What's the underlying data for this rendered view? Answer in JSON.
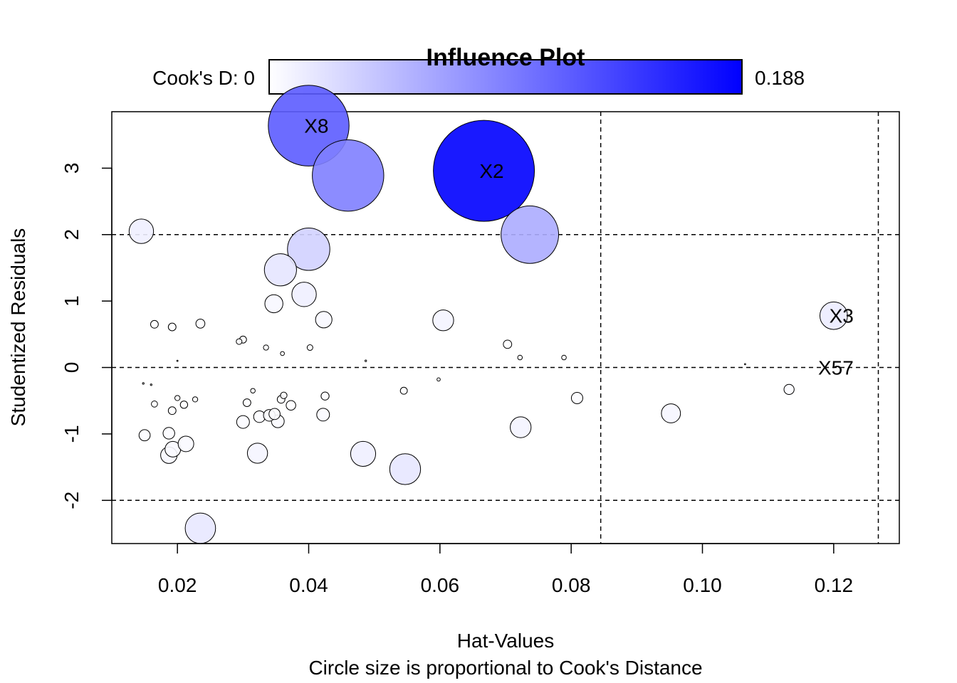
{
  "chart_data": {
    "type": "scatter",
    "title": "Influence Plot",
    "xlabel": "Hat-Values",
    "subtitle": "Circle size is proportional to Cook's Distance",
    "ylabel": "Studentized Residuals",
    "xlim": [
      0.01,
      0.13
    ],
    "ylim": [
      -2.65,
      3.85
    ],
    "xticks": [
      0.02,
      0.04,
      0.06,
      0.08,
      0.1,
      0.12
    ],
    "xtick_labels": [
      "0.02",
      "0.04",
      "0.06",
      "0.08",
      "0.10",
      "0.12"
    ],
    "yticks": [
      -2,
      -1,
      0,
      1,
      2,
      3
    ],
    "ytick_labels": [
      "-2",
      "-1",
      "0",
      "1",
      "2",
      "3"
    ],
    "grid": false,
    "hlines": [
      -2,
      0,
      2
    ],
    "vlines": [
      0.0845,
      0.1268
    ],
    "legend": {
      "position": "top",
      "label_left": "Cook's D: 0",
      "label_right": "0.188",
      "min": 0,
      "max": 0.188,
      "color_low": "#ffffff",
      "color_high": "#0000ff"
    },
    "points": [
      {
        "x": 0.04,
        "y": 3.64,
        "cooksd": 0.12,
        "label": "X8"
      },
      {
        "x": 0.046,
        "y": 2.89,
        "cooksd": 0.094
      },
      {
        "x": 0.0667,
        "y": 2.96,
        "cooksd": 0.188,
        "label": "X2"
      },
      {
        "x": 0.0737,
        "y": 2.0,
        "cooksd": 0.061
      },
      {
        "x": 0.0145,
        "y": 2.05,
        "cooksd": 0.011
      },
      {
        "x": 0.04,
        "y": 1.78,
        "cooksd": 0.033
      },
      {
        "x": 0.0357,
        "y": 1.47,
        "cooksd": 0.019
      },
      {
        "x": 0.0393,
        "y": 1.1,
        "cooksd": 0.011
      },
      {
        "x": 0.0347,
        "y": 0.96,
        "cooksd": 0.006
      },
      {
        "x": 0.0423,
        "y": 0.72,
        "cooksd": 0.005
      },
      {
        "x": 0.0605,
        "y": 0.71,
        "cooksd": 0.008
      },
      {
        "x": 0.12,
        "y": 0.78,
        "cooksd": 0.014,
        "label": "X3"
      },
      {
        "x": 0.0165,
        "y": 0.65,
        "cooksd": 0.0011
      },
      {
        "x": 0.0192,
        "y": 0.61,
        "cooksd": 0.0011
      },
      {
        "x": 0.0235,
        "y": 0.66,
        "cooksd": 0.0015
      },
      {
        "x": 0.03,
        "y": 0.42,
        "cooksd": 0.0009
      },
      {
        "x": 0.0294,
        "y": 0.39,
        "cooksd": 0.0006
      },
      {
        "x": 0.0335,
        "y": 0.3,
        "cooksd": 0.0005
      },
      {
        "x": 0.0402,
        "y": 0.3,
        "cooksd": 0.0006
      },
      {
        "x": 0.036,
        "y": 0.21,
        "cooksd": 0.0003
      },
      {
        "x": 0.0703,
        "y": 0.35,
        "cooksd": 0.0013
      },
      {
        "x": 0.0722,
        "y": 0.15,
        "cooksd": 0.0004
      },
      {
        "x": 0.0789,
        "y": 0.15,
        "cooksd": 0.0004
      },
      {
        "x": 0.02,
        "y": 0.1,
        "cooksd": 3e-05
      },
      {
        "x": 0.0487,
        "y": 0.1,
        "cooksd": 5e-05
      },
      {
        "x": 0.1065,
        "y": 0.05,
        "cooksd": 3e-05
      },
      {
        "x": 0.12,
        "y": 0.0,
        "cooksd": 0.0,
        "label": "X57"
      },
      {
        "x": 0.0148,
        "y": -0.24,
        "cooksd": 5e-05
      },
      {
        "x": 0.016,
        "y": -0.26,
        "cooksd": 5e-05
      },
      {
        "x": 0.0598,
        "y": -0.18,
        "cooksd": 0.0002
      },
      {
        "x": 0.0545,
        "y": -0.35,
        "cooksd": 0.0009
      },
      {
        "x": 0.0315,
        "y": -0.35,
        "cooksd": 0.0004
      },
      {
        "x": 0.02,
        "y": -0.46,
        "cooksd": 0.0005
      },
      {
        "x": 0.0227,
        "y": -0.48,
        "cooksd": 0.0005
      },
      {
        "x": 0.0425,
        "y": -0.43,
        "cooksd": 0.0012
      },
      {
        "x": 0.0165,
        "y": -0.55,
        "cooksd": 0.0007
      },
      {
        "x": 0.021,
        "y": -0.56,
        "cooksd": 0.001
      },
      {
        "x": 0.0192,
        "y": -0.65,
        "cooksd": 0.0011
      },
      {
        "x": 0.0306,
        "y": -0.53,
        "cooksd": 0.0011
      },
      {
        "x": 0.0358,
        "y": -0.48,
        "cooksd": 0.0011
      },
      {
        "x": 0.0362,
        "y": -0.42,
        "cooksd": 0.0008
      },
      {
        "x": 0.0373,
        "y": -0.57,
        "cooksd": 0.0017
      },
      {
        "x": 0.0809,
        "y": -0.46,
        "cooksd": 0.0024
      },
      {
        "x": 0.1132,
        "y": -0.33,
        "cooksd": 0.0019
      },
      {
        "x": 0.0422,
        "y": -0.71,
        "cooksd": 0.003
      },
      {
        "x": 0.0325,
        "y": -0.74,
        "cooksd": 0.0025
      },
      {
        "x": 0.034,
        "y": -0.72,
        "cooksd": 0.0025
      },
      {
        "x": 0.0348,
        "y": -0.7,
        "cooksd": 0.0023
      },
      {
        "x": 0.03,
        "y": -0.82,
        "cooksd": 0.003
      },
      {
        "x": 0.0353,
        "y": -0.81,
        "cooksd": 0.003
      },
      {
        "x": 0.0952,
        "y": -0.69,
        "cooksd": 0.0067
      },
      {
        "x": 0.015,
        "y": -1.02,
        "cooksd": 0.0023
      },
      {
        "x": 0.0187,
        "y": -0.99,
        "cooksd": 0.0025
      },
      {
        "x": 0.0193,
        "y": -1.23,
        "cooksd": 0.0045
      },
      {
        "x": 0.0187,
        "y": -1.32,
        "cooksd": 0.005
      },
      {
        "x": 0.0213,
        "y": -1.15,
        "cooksd": 0.0045
      },
      {
        "x": 0.0723,
        "y": -0.9,
        "cooksd": 0.008
      },
      {
        "x": 0.0322,
        "y": -1.29,
        "cooksd": 0.0075
      },
      {
        "x": 0.0483,
        "y": -1.3,
        "cooksd": 0.0115
      },
      {
        "x": 0.0547,
        "y": -1.53,
        "cooksd": 0.0175
      },
      {
        "x": 0.0235,
        "y": -2.42,
        "cooksd": 0.017
      }
    ]
  }
}
